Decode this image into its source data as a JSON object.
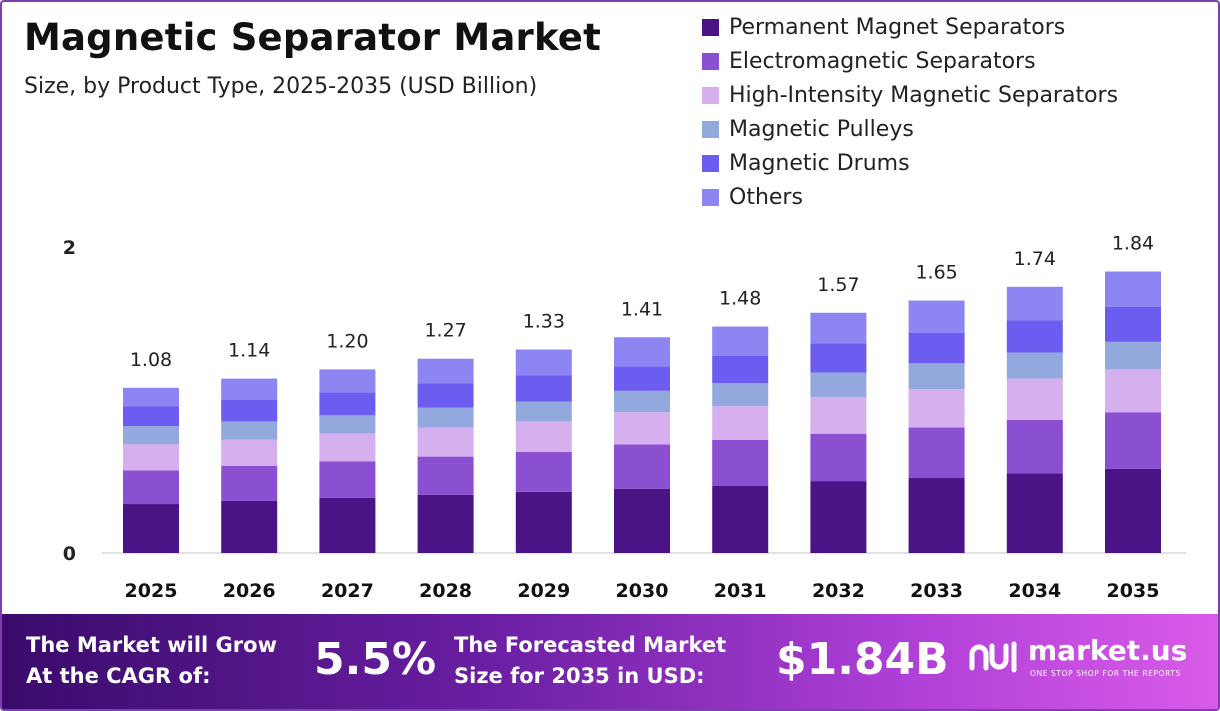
{
  "title": "Magnetic Separator Market",
  "subtitle": "Size, by Product Type, 2025-2035 (USD Billion)",
  "chart_data": {
    "type": "bar",
    "stacked": true,
    "categories": [
      "2025",
      "2026",
      "2027",
      "2028",
      "2029",
      "2030",
      "2031",
      "2032",
      "2033",
      "2034",
      "2035"
    ],
    "totals": [
      1.08,
      1.14,
      1.2,
      1.27,
      1.33,
      1.41,
      1.48,
      1.57,
      1.65,
      1.74,
      1.84
    ],
    "total_labels": [
      "1.08",
      "1.14",
      "1.20",
      "1.27",
      "1.33",
      "1.41",
      "1.48",
      "1.57",
      "1.65",
      "1.74",
      "1.84"
    ],
    "series": [
      {
        "name": "Permanent Magnet Separators",
        "color": "#4a1486",
        "values": [
          0.32,
          0.34,
          0.36,
          0.38,
          0.4,
          0.42,
          0.44,
          0.47,
          0.49,
          0.52,
          0.55
        ]
      },
      {
        "name": "Electromagnetic Separators",
        "color": "#8b4fd1",
        "values": [
          0.22,
          0.23,
          0.24,
          0.25,
          0.26,
          0.29,
          0.3,
          0.31,
          0.33,
          0.35,
          0.37
        ]
      },
      {
        "name": "High-Intensity Magnetic Separators",
        "color": "#d6b0ee",
        "values": [
          0.17,
          0.17,
          0.18,
          0.19,
          0.2,
          0.21,
          0.22,
          0.24,
          0.25,
          0.27,
          0.28
        ]
      },
      {
        "name": "Magnetic Pulleys",
        "color": "#93a9de",
        "values": [
          0.12,
          0.12,
          0.12,
          0.13,
          0.13,
          0.14,
          0.15,
          0.16,
          0.17,
          0.17,
          0.18
        ]
      },
      {
        "name": "Magnetic Drums",
        "color": "#6c5cf0",
        "values": [
          0.13,
          0.14,
          0.15,
          0.16,
          0.17,
          0.16,
          0.18,
          0.19,
          0.2,
          0.21,
          0.23
        ]
      },
      {
        "name": "Others",
        "color": "#8c85f2",
        "values": [
          0.12,
          0.14,
          0.15,
          0.16,
          0.17,
          0.19,
          0.19,
          0.2,
          0.21,
          0.22,
          0.23
        ]
      }
    ],
    "ylim": [
      0,
      2
    ],
    "yticks": [
      "0",
      "2"
    ],
    "legend": "top-right",
    "grid": false
  },
  "footer": {
    "cagr_label_line1": "The Market will Grow",
    "cagr_label_line2": "At the CAGR of:",
    "cagr_value": "5.5%",
    "forecast_label_line1": "The Forecasted Market",
    "forecast_label_line2": "Size for 2035 in USD:",
    "forecast_value": "$1.84B",
    "logo_text": "market.us",
    "logo_tagline": "ONE STOP SHOP FOR THE REPORTS"
  }
}
